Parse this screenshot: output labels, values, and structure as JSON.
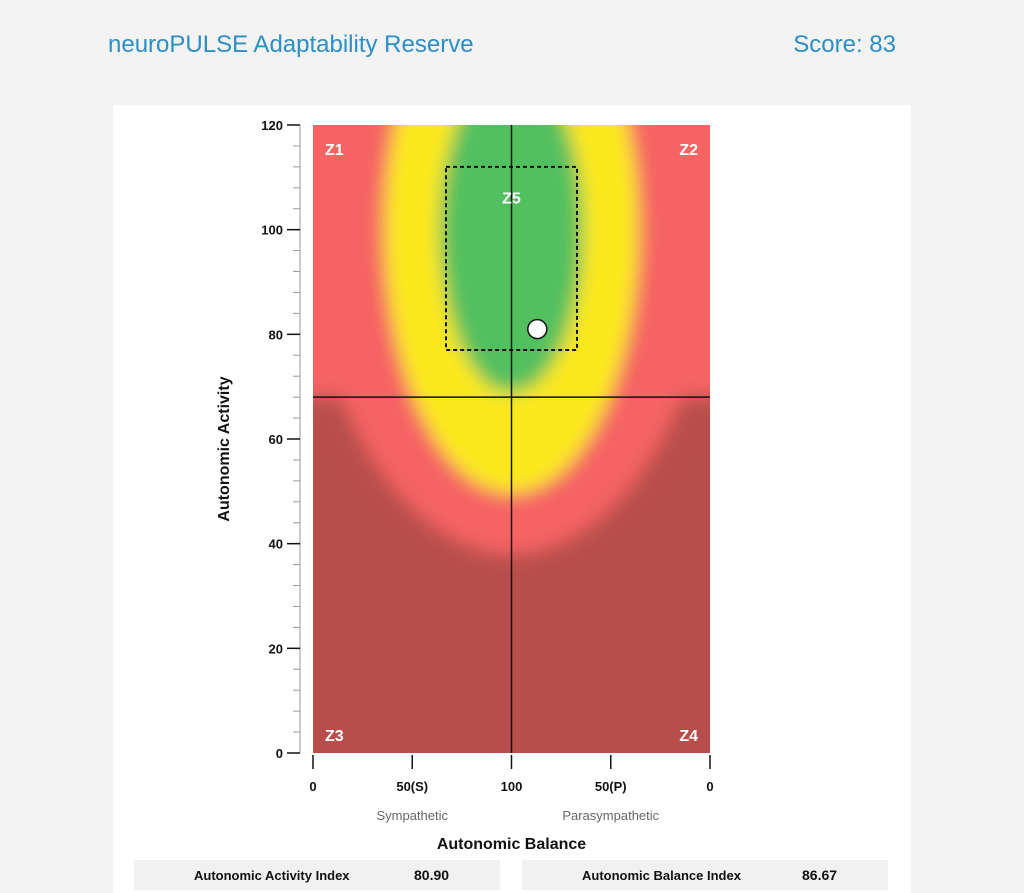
{
  "header": {
    "title": "neuroPULSE Adaptability Reserve",
    "score_label": "Score: 83"
  },
  "chart_data": {
    "type": "scatter",
    "xlabel": "Autonomic Balance",
    "ylabel": "Autonomic Activity",
    "ylim": [
      0,
      120
    ],
    "y_ticks": [
      0,
      20,
      40,
      60,
      80,
      100,
      120
    ],
    "x_tick_labels": [
      "0",
      "50(S)",
      "100",
      "50(P)",
      "0"
    ],
    "x_sub_labels": [
      "Sympathetic",
      "Parasympathetic"
    ],
    "zones": [
      "Z1",
      "Z2",
      "Z3",
      "Z4",
      "Z5"
    ],
    "point": {
      "x": 113,
      "y": 81
    },
    "activity_divider": 68,
    "colors": {
      "green": "#53c05e",
      "yellow": "#fbe81e",
      "red": "#f56464",
      "dark_red": "#b84e4b"
    }
  },
  "stats": {
    "activity_label": "Autonomic Activity Index",
    "activity_value": "80.90",
    "balance_label": "Autonomic Balance Index",
    "balance_value": "86.67"
  }
}
